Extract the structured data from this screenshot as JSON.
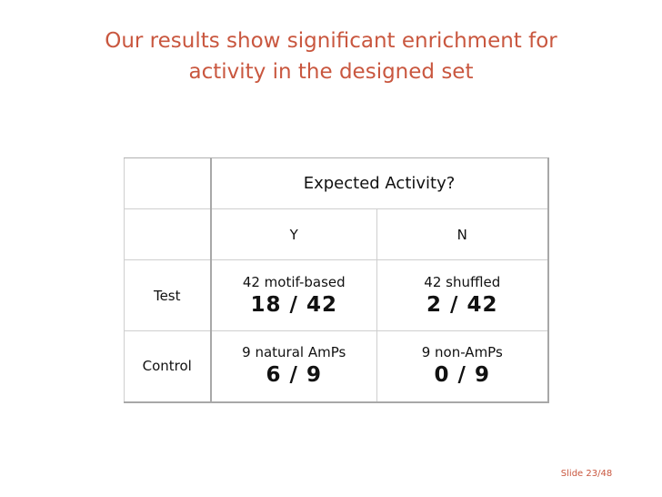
{
  "slide": {
    "title_line1": "Our results show significant enrichment for",
    "title_line2": "activity in the designed set",
    "slide_number": "Slide 23/48",
    "accent_color": "#c9573f"
  },
  "table": {
    "header": "Expected Activity?",
    "columns": [
      "Y",
      "N"
    ],
    "rows": [
      {
        "label": "Test",
        "cells": [
          {
            "description": "42 motif-based",
            "value": "18 / 42"
          },
          {
            "description": "42 shuffled",
            "value": "2 / 42"
          }
        ]
      },
      {
        "label": "Control",
        "cells": [
          {
            "description": "9 natural AmPs",
            "value": "6 / 9"
          },
          {
            "description": "9 non-AmPs",
            "value": "0 / 9"
          }
        ]
      }
    ]
  }
}
